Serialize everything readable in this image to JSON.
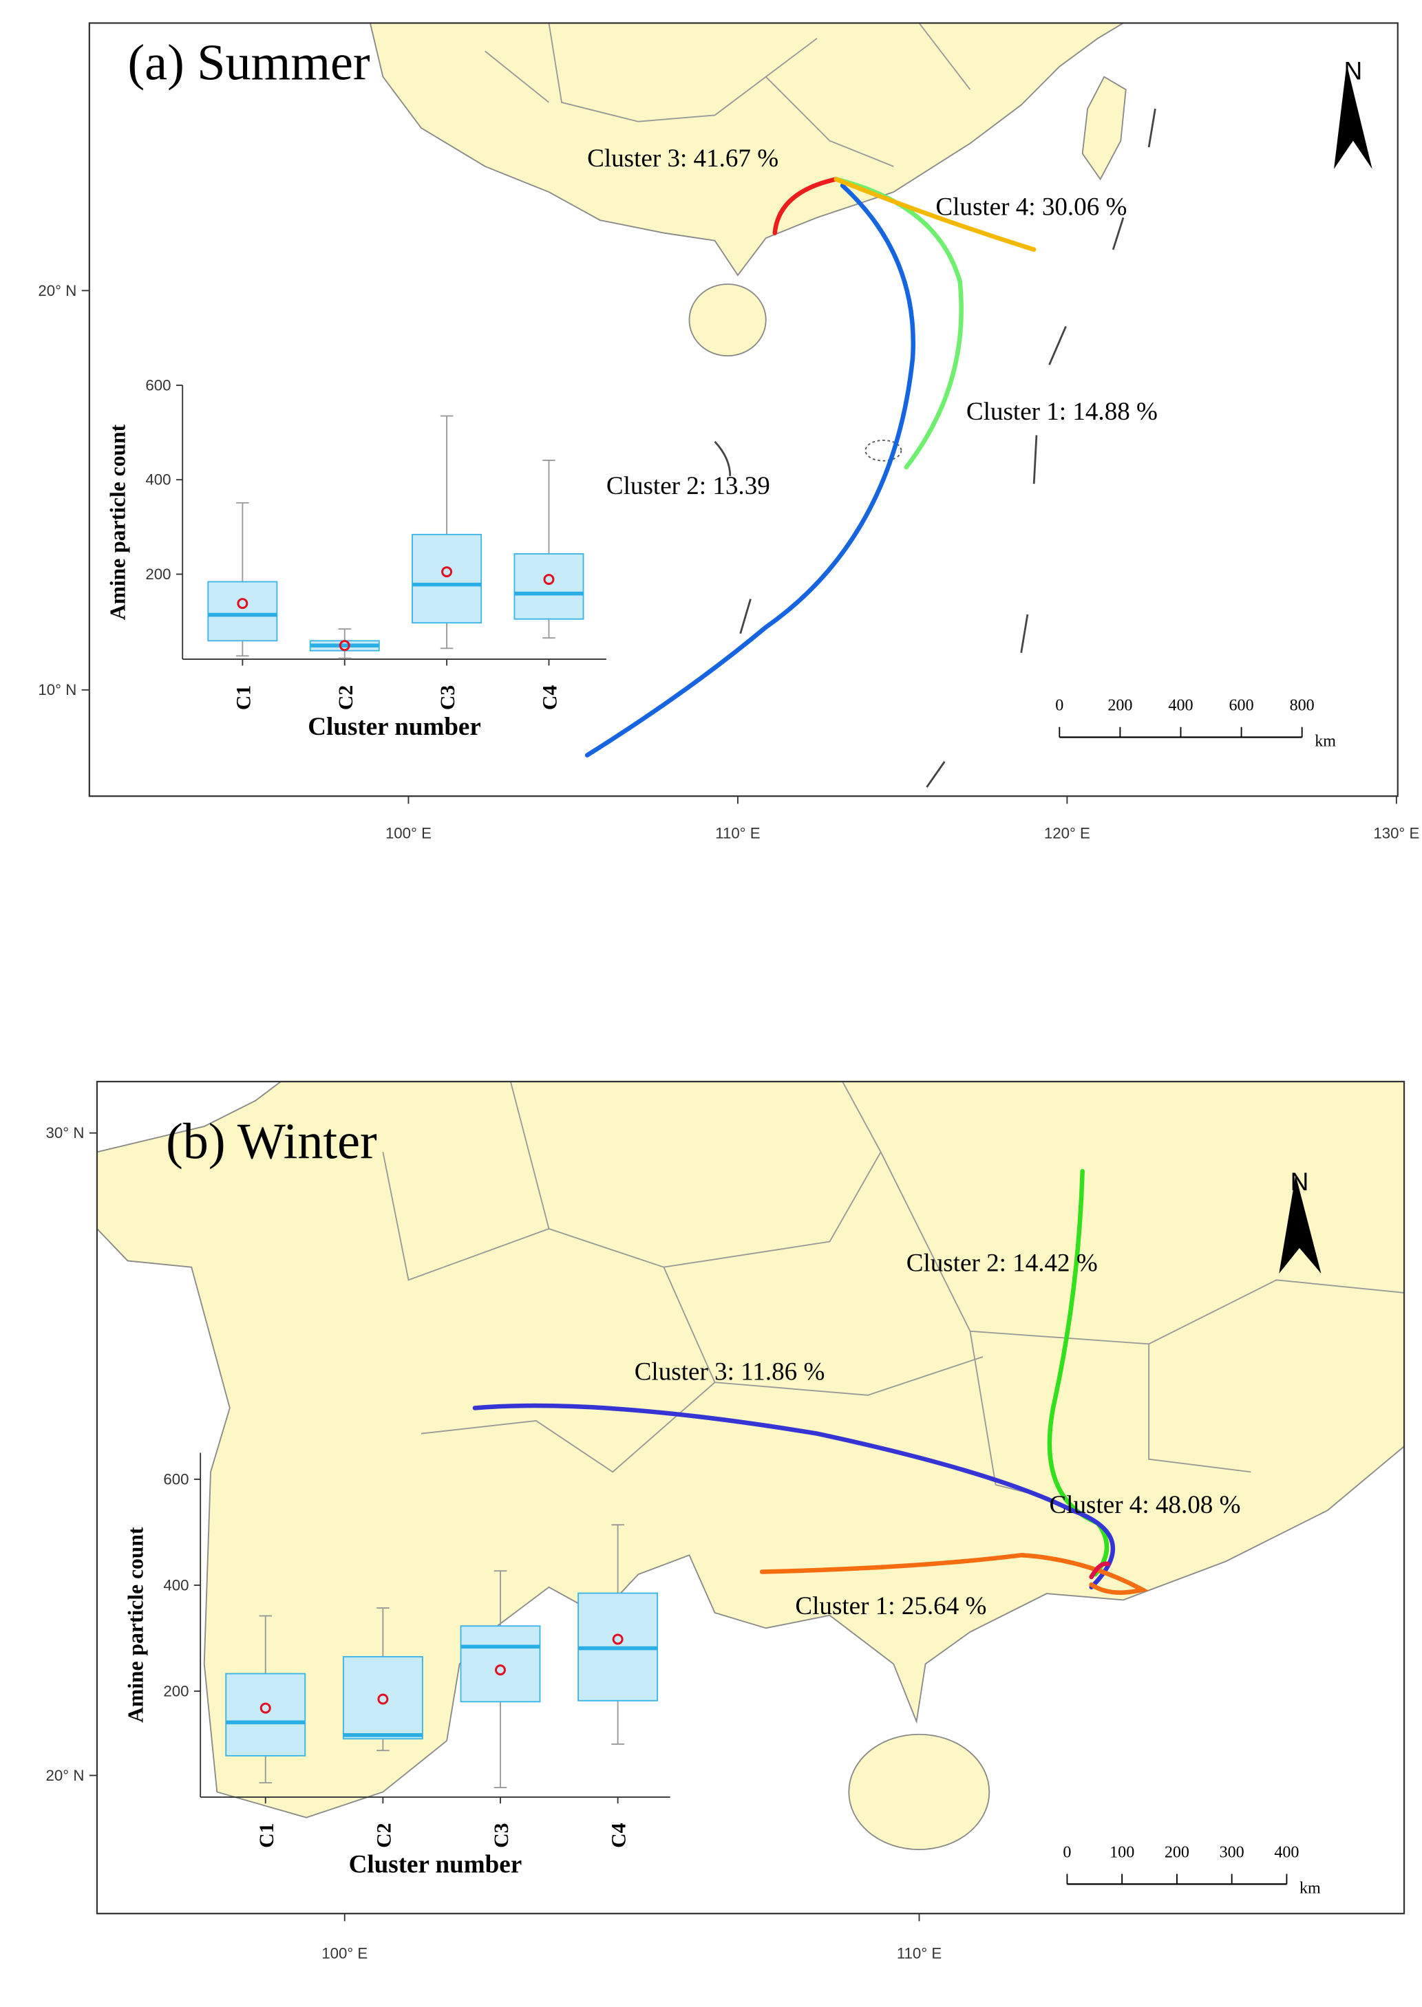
{
  "maps": [
    {
      "title": "(a) Summer",
      "xlim": [
        90.31,
        130.04
      ],
      "ylim": [
        7.34,
        26.7
      ],
      "xticks": [
        {
          "value": 100,
          "label": "100° E"
        },
        {
          "value": 110,
          "label": "110° E"
        },
        {
          "value": 120,
          "label": "120° E"
        },
        {
          "value": 130,
          "label": "130° E"
        }
      ],
      "yticks": [
        {
          "value": 10,
          "label": "10° N"
        },
        {
          "value": 20,
          "label": "20° N"
        }
      ],
      "north": "N",
      "scale_bar": {
        "ticks": [
          0,
          200,
          400,
          600,
          800
        ],
        "unit": "km"
      },
      "cluster_labels": [
        "Cluster 3: 41.67 %",
        "Cluster 4: 30.06 %",
        "Cluster 1: 14.88 %",
        "Cluster 2: 13.39"
      ]
    },
    {
      "title": "(b) Winter",
      "xlim": [
        95.69,
        118.44
      ],
      "ylim": [
        17.85,
        30.8
      ],
      "xticks": [
        {
          "value": 100,
          "label": "100° E"
        },
        {
          "value": 110,
          "label": "110° E"
        }
      ],
      "yticks": [
        {
          "value": 20,
          "label": "20° N"
        },
        {
          "value": 30,
          "label": "30° N"
        }
      ],
      "north": "N",
      "scale_bar": {
        "ticks": [
          0,
          100,
          200,
          300,
          400
        ],
        "unit": "km"
      },
      "cluster_labels": [
        "Cluster 2: 14.42 %",
        "Cluster 3: 11.86 %",
        "Cluster 4: 48.08 %",
        "Cluster 1: 25.64 %"
      ]
    }
  ],
  "chart_data": [
    {
      "type": "box",
      "x_label": "Cluster number",
      "y_label": "Amine particle count",
      "categories": [
        "C1",
        "C2",
        "C3",
        "C4"
      ],
      "min": [
        27,
        22,
        43,
        65
      ],
      "q1": [
        59,
        38,
        97,
        105
      ],
      "median": [
        114,
        49,
        178,
        159
      ],
      "q3": [
        184,
        59,
        284,
        243
      ],
      "max": [
        351,
        84,
        535,
        441
      ],
      "mean": [
        138,
        49,
        205,
        189
      ],
      "ylim": [
        20,
        600
      ],
      "yticks": [
        200,
        400,
        600
      ]
    },
    {
      "type": "box",
      "x_label": "Cluster number",
      "y_label": "Amine particle count",
      "categories": [
        "C1",
        "C2",
        "C3",
        "C4"
      ],
      "min": [
        27,
        88,
        18,
        100
      ],
      "q1": [
        78,
        110,
        180,
        182
      ],
      "median": [
        141,
        117,
        284,
        281
      ],
      "q3": [
        233,
        265,
        323,
        385
      ],
      "max": [
        342,
        357,
        427,
        514
      ],
      "mean": [
        168,
        185,
        240,
        298
      ],
      "ylim": [
        0,
        650
      ],
      "yticks": [
        200,
        400,
        600
      ]
    }
  ]
}
